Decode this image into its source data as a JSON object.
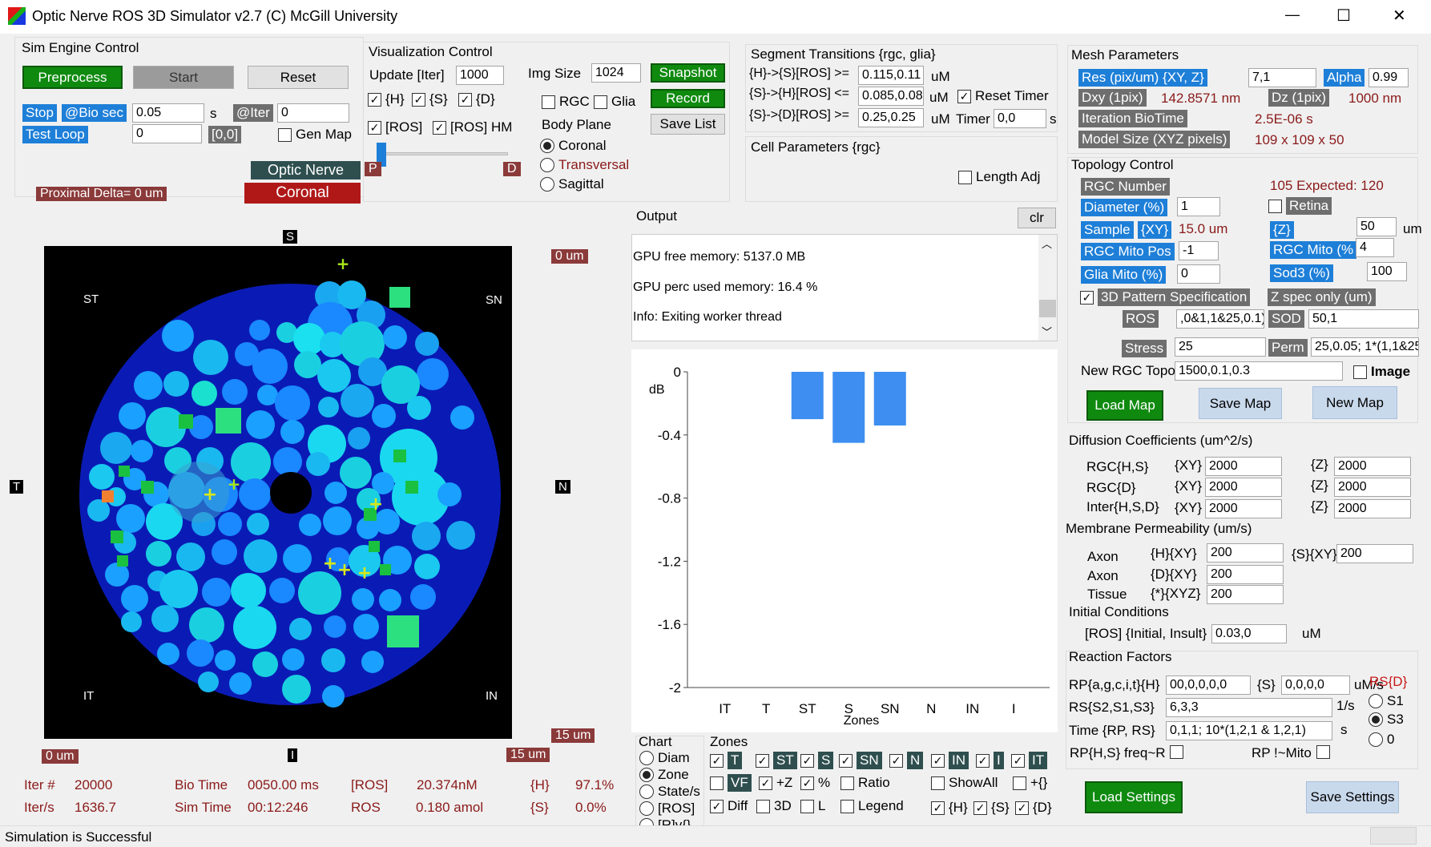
{
  "window": {
    "title": "Optic Nerve ROS 3D Simulator v2.7 (C) McGill University",
    "min": "—",
    "max": "☐",
    "close": "✕"
  },
  "sim_engine": {
    "title": "Sim Engine Control",
    "preprocess": "Preprocess",
    "start": "Start",
    "reset": "Reset",
    "stop": "Stop",
    "bio_sec_label": "@Bio sec",
    "bio_sec_value": "0.05",
    "s": "s",
    "iter_label": "@Iter",
    "iter_value": "0",
    "test_loop": "Test Loop",
    "test_loop_value": "0",
    "range": "[0,0]",
    "gen_map": "Gen Map",
    "optic_nerve": "Optic Nerve",
    "coronal": "Coronal",
    "proximal_delta": "Proximal Delta= 0 um"
  },
  "vis": {
    "title": "Visualization Control",
    "update_label": "Update [Iter]",
    "update_value": "1000",
    "img_size_label": "Img Size",
    "img_size_value": "1024",
    "snapshot": "Snapshot",
    "record": "Record",
    "save_list": "Save List",
    "h": "{H}",
    "s": "{S}",
    "d": "{D}",
    "rgc": "RGC",
    "glia": "Glia",
    "ros": "[ROS]",
    "ros_hm": "[ROS] HM",
    "body_plane": "Body Plane",
    "coronal": "Coronal",
    "transversal": "Transversal",
    "sagittal": "Sagittal",
    "p": "P",
    "dd": "D"
  },
  "segment": {
    "title": "Segment Transitions {rgc, glia}",
    "r1_label": "{H}->{S}[ROS] >=",
    "r1_value": "0.115,0.11",
    "r2_label": "{S}->{H}[ROS] <=",
    "r2_value": "0.085,0.08",
    "r3_label": "{S}->{D}[ROS] >=",
    "r3_value": "0.25,0.25",
    "um": "uM",
    "reset_timer": "Reset Timer",
    "timer_label": "Timer",
    "timer_value": "0,0",
    "s": "s"
  },
  "cell": {
    "title": "Cell Parameters {rgc}",
    "length_adj": "Length Adj"
  },
  "output": {
    "title": "Output",
    "clr": "clr",
    "lines": [
      "GPU free memory: 5137.0 MB",
      "GPU perc used memory: 16.4 %",
      "Info: Exiting worker thread"
    ]
  },
  "map": {
    "S": "S",
    "I": "I",
    "T": "T",
    "N": "N",
    "ST": "ST",
    "SN": "SN",
    "IT": "IT",
    "IN": "IN",
    "top_right": "0 um",
    "bottom_right": "15 um",
    "bottom_left": "0 um",
    "bottom_mid": "15 um"
  },
  "stats": {
    "iter_label": "Iter #",
    "iter_value": "20000",
    "iters_label": "Iter/s",
    "iters_value": "1636.7",
    "bio_time_label": "Bio Time",
    "bio_time_value": "0050.00 ms",
    "sim_time_label": "Sim Time",
    "sim_time_value": "00:12:246",
    "ros_label": "[ROS]",
    "ros_value": "20.374nM",
    "ros2_label": "ROS",
    "ros2_value": "0.180 amol",
    "h_label": "{H}",
    "h_value": "97.1%",
    "s_label": "{S}",
    "s_value": "0.0%"
  },
  "chart_data": {
    "type": "bar",
    "categories": [
      "IT",
      "T",
      "ST",
      "S",
      "SN",
      "N",
      "IN",
      "I"
    ],
    "values": [
      0,
      0,
      -0.3,
      -0.45,
      -0.34,
      0,
      0,
      0
    ],
    "xlabel": "Zones",
    "ylabel": "dB",
    "ylim": [
      -2,
      0
    ],
    "yticks": [
      "0",
      "-0.4",
      "-0.8",
      "-1.2",
      "-1.6",
      "-2"
    ],
    "bar_color": "#3d8ef0",
    "grid": false
  },
  "chart_opts": {
    "title": "Chart",
    "diam": "Diam",
    "zone": "Zone",
    "states": "State/s",
    "ros": "[ROS]",
    "rv": "[R]v{}"
  },
  "zones": {
    "title": "Zones",
    "T": "T",
    "ST": "ST",
    "S": "S",
    "SN": "SN",
    "N": "N",
    "IN": "IN",
    "I": "I",
    "IT": "IT",
    "VF": "VF",
    "plusz": "+Z",
    "pct": "%",
    "ratio": "Ratio",
    "showall": "ShowAll",
    "plusbr": "+{}",
    "diff": "Diff",
    "d3": "3D",
    "l": "L",
    "legend": "Legend",
    "h": "{H}",
    "s": "{S}",
    "d": "{D}"
  },
  "mesh": {
    "title": "Mesh Parameters",
    "res_label": "Res (pix/um) {XY, Z}",
    "res_value": "7,1",
    "alpha_label": "Alpha",
    "alpha_value": "0.99",
    "dxy_label": "Dxy (1pix)",
    "dxy_value": "142.8571 nm",
    "dz_label": "Dz (1pix)",
    "dz_value": "1000 nm",
    "iter_bio_label": "Iteration BioTime",
    "iter_bio_value": "2.5E-06 s",
    "model_label": "Model Size (XYZ pixels)",
    "model_value": "109 x 109 x 50"
  },
  "topo": {
    "title": "Topology Control",
    "rgc_num": "RGC Number",
    "expected": "105 Expected: 120",
    "diam_label": "Diameter (%)",
    "diam_value": "1",
    "retina": "Retina",
    "sample_label": "Sample",
    "xy": "{XY}",
    "sample_value": "15.0 um",
    "z": "{Z}",
    "z_value": "50",
    "um": "um",
    "mito_pos": "RGC Mito Pos",
    "mito_pos_value": "-1",
    "rgc_mito": "RGC Mito (%",
    "rgc_mito_value": "4",
    "glia_mito": "Glia Mito (%)",
    "glia_mito_value": "0",
    "sod3": "Sod3 (%)",
    "sod3_value": "100",
    "pattern": "3D Pattern Specification",
    "zspec": "Z spec only (um)",
    "ros": "ROS",
    "ros_value": ",0&1,1&25,0.1)",
    "sod": "SOD",
    "sod_value": "50,1",
    "stress": "Stress",
    "stress_value": "25",
    "perm": "Perm",
    "perm_value": "25,0.05; 1*(1,1&25",
    "new_topo": "New RGC Topo",
    "new_topo_value": "1500,0.1,0.3",
    "image": "Image",
    "load_map": "Load Map",
    "save_map": "Save Map",
    "new_map": "New Map"
  },
  "diff": {
    "title": "Diffusion Coefficients (um^2/s)",
    "r1": "RGC{H,S}",
    "r2": "RGC{D}",
    "r3": "Inter{H,S,D}",
    "xy": "{XY}",
    "z": "{Z}",
    "v": "2000"
  },
  "memb": {
    "title": "Membrane Permeability (um/s)",
    "axon": "Axon",
    "tissue": "Tissue",
    "hxy": "{H}{XY}",
    "sxy": "{S}{XY}",
    "dxy": "{D}{XY}",
    "xyz": "{*}{XYZ}",
    "v": "200"
  },
  "init": {
    "title": "Initial Conditions",
    "label": "[ROS] {Initial, Insult}",
    "value": "0.03,0",
    "um": "uM"
  },
  "react": {
    "title": "Reaction Factors",
    "rp_label": "RP{a,g,c,i,t}{H}",
    "rp_h": "00,0,0,0,0",
    "s": "{S}",
    "rp_s": "0,0,0,0",
    "ums": "uM/s",
    "rs_label": "RS{S2,S1,S3}",
    "rs_value": "6,3,3",
    "per_s": "1/s",
    "time_label": "Time {RP, RS}",
    "time_value": "0,1,1; 10*(1,2,1 & 1,2,1)",
    "sec": "s",
    "freq": "RP{H,S} freq~R",
    "mito": "RP !~Mito",
    "rsd": "RS{D}",
    "s1": "S1",
    "s3": "S3",
    "zero": "0"
  },
  "settings": {
    "load": "Load Settings",
    "save": "Save Settings"
  },
  "status": "Simulation is Successful"
}
